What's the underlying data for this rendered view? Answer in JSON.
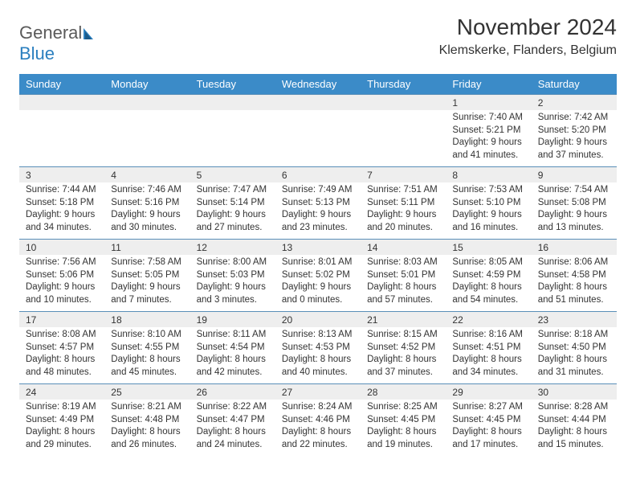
{
  "logo": {
    "general": "General",
    "blue": "Blue"
  },
  "header": {
    "month": "November 2024",
    "location": "Klemskerke, Flanders, Belgium"
  },
  "colors": {
    "header_bg": "#3b8bc8",
    "header_text": "#ffffff",
    "daterow_bg": "#eeeeee",
    "border": "#5a8fb8",
    "text": "#333333",
    "logo_gray": "#5a5a5a",
    "logo_blue": "#2b7fbf"
  },
  "days": [
    "Sunday",
    "Monday",
    "Tuesday",
    "Wednesday",
    "Thursday",
    "Friday",
    "Saturday"
  ],
  "weeks": [
    [
      null,
      null,
      null,
      null,
      null,
      {
        "num": "1",
        "sunrise": "Sunrise: 7:40 AM",
        "sunset": "Sunset: 5:21 PM",
        "daylight": "Daylight: 9 hours and 41 minutes."
      },
      {
        "num": "2",
        "sunrise": "Sunrise: 7:42 AM",
        "sunset": "Sunset: 5:20 PM",
        "daylight": "Daylight: 9 hours and 37 minutes."
      }
    ],
    [
      {
        "num": "3",
        "sunrise": "Sunrise: 7:44 AM",
        "sunset": "Sunset: 5:18 PM",
        "daylight": "Daylight: 9 hours and 34 minutes."
      },
      {
        "num": "4",
        "sunrise": "Sunrise: 7:46 AM",
        "sunset": "Sunset: 5:16 PM",
        "daylight": "Daylight: 9 hours and 30 minutes."
      },
      {
        "num": "5",
        "sunrise": "Sunrise: 7:47 AM",
        "sunset": "Sunset: 5:14 PM",
        "daylight": "Daylight: 9 hours and 27 minutes."
      },
      {
        "num": "6",
        "sunrise": "Sunrise: 7:49 AM",
        "sunset": "Sunset: 5:13 PM",
        "daylight": "Daylight: 9 hours and 23 minutes."
      },
      {
        "num": "7",
        "sunrise": "Sunrise: 7:51 AM",
        "sunset": "Sunset: 5:11 PM",
        "daylight": "Daylight: 9 hours and 20 minutes."
      },
      {
        "num": "8",
        "sunrise": "Sunrise: 7:53 AM",
        "sunset": "Sunset: 5:10 PM",
        "daylight": "Daylight: 9 hours and 16 minutes."
      },
      {
        "num": "9",
        "sunrise": "Sunrise: 7:54 AM",
        "sunset": "Sunset: 5:08 PM",
        "daylight": "Daylight: 9 hours and 13 minutes."
      }
    ],
    [
      {
        "num": "10",
        "sunrise": "Sunrise: 7:56 AM",
        "sunset": "Sunset: 5:06 PM",
        "daylight": "Daylight: 9 hours and 10 minutes."
      },
      {
        "num": "11",
        "sunrise": "Sunrise: 7:58 AM",
        "sunset": "Sunset: 5:05 PM",
        "daylight": "Daylight: 9 hours and 7 minutes."
      },
      {
        "num": "12",
        "sunrise": "Sunrise: 8:00 AM",
        "sunset": "Sunset: 5:03 PM",
        "daylight": "Daylight: 9 hours and 3 minutes."
      },
      {
        "num": "13",
        "sunrise": "Sunrise: 8:01 AM",
        "sunset": "Sunset: 5:02 PM",
        "daylight": "Daylight: 9 hours and 0 minutes."
      },
      {
        "num": "14",
        "sunrise": "Sunrise: 8:03 AM",
        "sunset": "Sunset: 5:01 PM",
        "daylight": "Daylight: 8 hours and 57 minutes."
      },
      {
        "num": "15",
        "sunrise": "Sunrise: 8:05 AM",
        "sunset": "Sunset: 4:59 PM",
        "daylight": "Daylight: 8 hours and 54 minutes."
      },
      {
        "num": "16",
        "sunrise": "Sunrise: 8:06 AM",
        "sunset": "Sunset: 4:58 PM",
        "daylight": "Daylight: 8 hours and 51 minutes."
      }
    ],
    [
      {
        "num": "17",
        "sunrise": "Sunrise: 8:08 AM",
        "sunset": "Sunset: 4:57 PM",
        "daylight": "Daylight: 8 hours and 48 minutes."
      },
      {
        "num": "18",
        "sunrise": "Sunrise: 8:10 AM",
        "sunset": "Sunset: 4:55 PM",
        "daylight": "Daylight: 8 hours and 45 minutes."
      },
      {
        "num": "19",
        "sunrise": "Sunrise: 8:11 AM",
        "sunset": "Sunset: 4:54 PM",
        "daylight": "Daylight: 8 hours and 42 minutes."
      },
      {
        "num": "20",
        "sunrise": "Sunrise: 8:13 AM",
        "sunset": "Sunset: 4:53 PM",
        "daylight": "Daylight: 8 hours and 40 minutes."
      },
      {
        "num": "21",
        "sunrise": "Sunrise: 8:15 AM",
        "sunset": "Sunset: 4:52 PM",
        "daylight": "Daylight: 8 hours and 37 minutes."
      },
      {
        "num": "22",
        "sunrise": "Sunrise: 8:16 AM",
        "sunset": "Sunset: 4:51 PM",
        "daylight": "Daylight: 8 hours and 34 minutes."
      },
      {
        "num": "23",
        "sunrise": "Sunrise: 8:18 AM",
        "sunset": "Sunset: 4:50 PM",
        "daylight": "Daylight: 8 hours and 31 minutes."
      }
    ],
    [
      {
        "num": "24",
        "sunrise": "Sunrise: 8:19 AM",
        "sunset": "Sunset: 4:49 PM",
        "daylight": "Daylight: 8 hours and 29 minutes."
      },
      {
        "num": "25",
        "sunrise": "Sunrise: 8:21 AM",
        "sunset": "Sunset: 4:48 PM",
        "daylight": "Daylight: 8 hours and 26 minutes."
      },
      {
        "num": "26",
        "sunrise": "Sunrise: 8:22 AM",
        "sunset": "Sunset: 4:47 PM",
        "daylight": "Daylight: 8 hours and 24 minutes."
      },
      {
        "num": "27",
        "sunrise": "Sunrise: 8:24 AM",
        "sunset": "Sunset: 4:46 PM",
        "daylight": "Daylight: 8 hours and 22 minutes."
      },
      {
        "num": "28",
        "sunrise": "Sunrise: 8:25 AM",
        "sunset": "Sunset: 4:45 PM",
        "daylight": "Daylight: 8 hours and 19 minutes."
      },
      {
        "num": "29",
        "sunrise": "Sunrise: 8:27 AM",
        "sunset": "Sunset: 4:45 PM",
        "daylight": "Daylight: 8 hours and 17 minutes."
      },
      {
        "num": "30",
        "sunrise": "Sunrise: 8:28 AM",
        "sunset": "Sunset: 4:44 PM",
        "daylight": "Daylight: 8 hours and 15 minutes."
      }
    ]
  ]
}
